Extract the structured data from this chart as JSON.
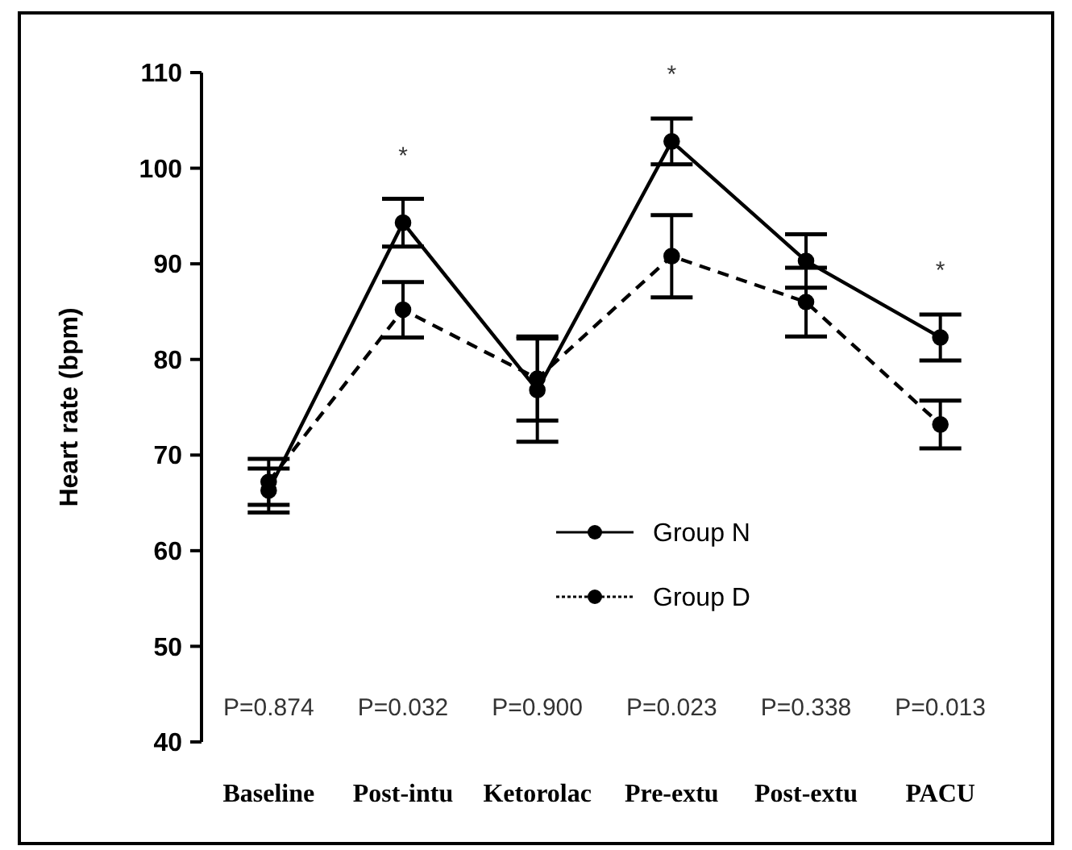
{
  "chart_data": {
    "type": "line",
    "ylabel": "Heart rate (bpm)",
    "categories": [
      "Baseline",
      "Post-intu",
      "Ketorolac",
      "Pre-extu",
      "Post-extu",
      "PACU"
    ],
    "series": [
      {
        "name": "Group N",
        "color": "#000000",
        "line_style": "solid",
        "marker": "circle",
        "values": [
          66.3,
          94.3,
          76.8,
          102.8,
          90.3,
          82.3
        ],
        "errors": [
          2.3,
          2.5,
          5.4,
          2.4,
          2.8,
          2.4
        ]
      },
      {
        "name": "Group D",
        "color": "#000000",
        "line_style": "dashed",
        "marker": "circle",
        "values": [
          67.2,
          85.2,
          78,
          90.8,
          86,
          73.2
        ],
        "errors": [
          2.4,
          2.9,
          4.4,
          4.3,
          3.6,
          2.5
        ]
      }
    ],
    "ylim": [
      40,
      110
    ],
    "yticks": [
      40,
      50,
      60,
      70,
      80,
      90,
      100,
      110
    ],
    "grid": false,
    "legend": "bottom",
    "annotations": [
      {
        "text": "*",
        "x": "Post-intu",
        "y": 94.3
      },
      {
        "text": "*",
        "x": "Pre-extu",
        "y": 102.8
      },
      {
        "text": "*",
        "x": "PACU",
        "y": 82.3
      },
      "P=0.874",
      "P=0.032",
      "P=0.900",
      "P=0.023",
      "P=0.338",
      "P=0.013"
    ]
  }
}
